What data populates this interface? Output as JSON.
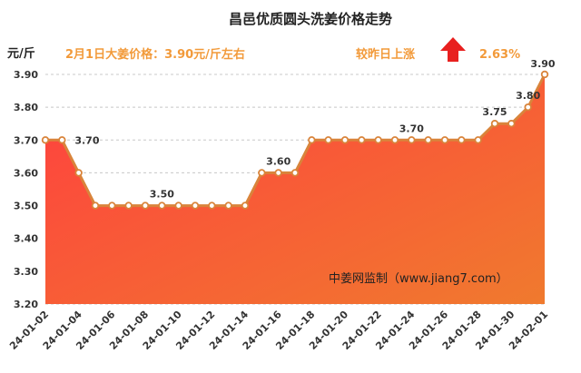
{
  "title": "昌邑优质圆头洗姜价格走势",
  "unit": "元/斤",
  "price_note": "2月1日大姜价格：3.90元/斤左右",
  "change_label": "较昨日上涨",
  "change_pct": "2.63%",
  "watermark": "中姜网监制（www.jiang7.com）",
  "colors": {
    "line": "#d9843b",
    "fill_top": "#ff3f3f",
    "fill_bottom": "#f07a2e",
    "arrow": "#e8201f",
    "annotation": "#f29a3a"
  },
  "chart_data": {
    "type": "area",
    "ylim": [
      3.2,
      3.9
    ],
    "yticks": [
      "3.20",
      "3.30",
      "3.40",
      "3.50",
      "3.60",
      "3.70",
      "3.80",
      "3.90"
    ],
    "xtick_labels": [
      "24-01-02",
      "24-01-04",
      "24-01-06",
      "24-01-08",
      "24-01-10",
      "24-01-12",
      "24-01-14",
      "24-01-16",
      "24-01-18",
      "24-01-20",
      "24-01-22",
      "24-01-24",
      "24-01-26",
      "24-01-28",
      "24-01-30",
      "24-02-01"
    ],
    "x": [
      "24-01-02",
      "24-01-03",
      "24-01-04",
      "24-01-05",
      "24-01-06",
      "24-01-07",
      "24-01-08",
      "24-01-09",
      "24-01-10",
      "24-01-11",
      "24-01-12",
      "24-01-13",
      "24-01-14",
      "24-01-15",
      "24-01-16",
      "24-01-17",
      "24-01-18",
      "24-01-19",
      "24-01-20",
      "24-01-21",
      "24-01-22",
      "24-01-23",
      "24-01-24",
      "24-01-25",
      "24-01-26",
      "24-01-27",
      "24-01-28",
      "24-01-29",
      "24-01-30",
      "24-01-31",
      "24-02-01"
    ],
    "values": [
      3.7,
      3.7,
      3.6,
      3.5,
      3.5,
      3.5,
      3.5,
      3.5,
      3.5,
      3.5,
      3.5,
      3.5,
      3.5,
      3.6,
      3.6,
      3.6,
      3.7,
      3.7,
      3.7,
      3.7,
      3.7,
      3.7,
      3.7,
      3.7,
      3.7,
      3.7,
      3.7,
      3.75,
      3.75,
      3.8,
      3.9
    ],
    "data_labels": [
      {
        "index": 1,
        "text": "3.70"
      },
      {
        "index": 7,
        "text": "3.50"
      },
      {
        "index": 14,
        "text": "3.60"
      },
      {
        "index": 22,
        "text": "3.70"
      },
      {
        "index": 27,
        "text": "3.75"
      },
      {
        "index": 29,
        "text": "3.80"
      },
      {
        "index": 30,
        "text": "3.90"
      }
    ]
  }
}
